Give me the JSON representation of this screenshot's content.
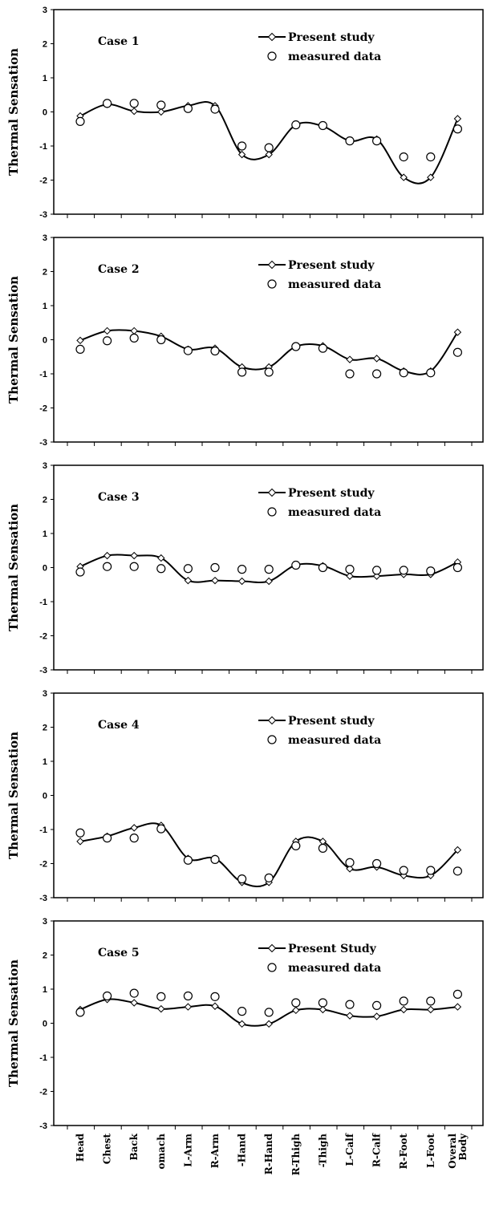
{
  "chart_data": [
    {
      "type": "line",
      "annotation": "Case 1",
      "ylabel": "Thermal Sensation",
      "ylim": [
        -3,
        3
      ],
      "yticks": [
        "3",
        "2",
        "1",
        "0",
        "-1",
        "-2",
        "-3"
      ],
      "legend": {
        "line_label": "Present study",
        "marker_label": "measured data"
      },
      "series": [
        {
          "name": "Present study",
          "values": [
            -0.12,
            0.22,
            0.02,
            0.0,
            0.18,
            0.18,
            -1.25,
            -1.25,
            -0.38,
            -0.42,
            -0.85,
            -0.8,
            -1.92,
            -1.92,
            -0.2
          ]
        },
        {
          "name": "measured data",
          "values": [
            -0.28,
            0.25,
            0.25,
            0.2,
            0.1,
            0.08,
            -1.0,
            -1.05,
            -0.38,
            -0.4,
            -0.85,
            -0.85,
            -1.32,
            -1.32,
            -0.5
          ]
        }
      ]
    },
    {
      "type": "line",
      "annotation": "Case 2",
      "ylabel": "Thermal Sensation",
      "ylim": [
        -3,
        3
      ],
      "yticks": [
        "3",
        "2",
        "1",
        "0",
        "-1",
        "-2",
        "-3"
      ],
      "legend": {
        "line_label": "Present study",
        "marker_label": "measured data"
      },
      "series": [
        {
          "name": "Present study",
          "values": [
            -0.02,
            0.26,
            0.26,
            0.1,
            -0.28,
            -0.25,
            -0.8,
            -0.8,
            -0.2,
            -0.18,
            -0.58,
            -0.55,
            -0.92,
            -0.92,
            0.22
          ]
        },
        {
          "name": "measured data",
          "values": [
            -0.28,
            -0.03,
            0.05,
            0.0,
            -0.32,
            -0.33,
            -0.95,
            -0.95,
            -0.2,
            -0.25,
            -1.0,
            -1.0,
            -0.97,
            -0.97,
            -0.37
          ]
        }
      ]
    },
    {
      "type": "line",
      "annotation": "Case 3",
      "ylabel": "Thermal Sensation",
      "ylim": [
        -3,
        3
      ],
      "yticks": [
        "3",
        "2",
        "1",
        "0",
        "-1",
        "-2",
        "-3"
      ],
      "legend": {
        "line_label": "Present study",
        "marker_label": "measured data"
      },
      "series": [
        {
          "name": "Present study",
          "values": [
            0.03,
            0.35,
            0.35,
            0.28,
            -0.38,
            -0.38,
            -0.4,
            -0.4,
            0.07,
            0.05,
            -0.25,
            -0.25,
            -0.2,
            -0.2,
            0.16
          ]
        },
        {
          "name": "measured data",
          "values": [
            -0.13,
            0.03,
            0.03,
            -0.03,
            -0.03,
            0.0,
            -0.05,
            -0.05,
            0.07,
            0.0,
            -0.05,
            -0.08,
            -0.08,
            -0.1,
            0.0
          ]
        }
      ]
    },
    {
      "type": "line",
      "annotation": "Case 4",
      "ylabel": "Thermal Sensation",
      "ylim": [
        -3,
        3
      ],
      "yticks": [
        "3",
        "2",
        "1",
        "0",
        "-1",
        "-2",
        "-3"
      ],
      "legend": {
        "line_label": "Present study",
        "marker_label": "measured data"
      },
      "series": [
        {
          "name": "Present study",
          "values": [
            -1.35,
            -1.2,
            -0.95,
            -0.88,
            -1.85,
            -1.85,
            -2.55,
            -2.55,
            -1.35,
            -1.35,
            -2.15,
            -2.1,
            -2.35,
            -2.35,
            -1.6
          ]
        },
        {
          "name": "measured data",
          "values": [
            -1.1,
            -1.25,
            -1.25,
            -0.98,
            -1.9,
            -1.88,
            -2.45,
            -2.42,
            -1.48,
            -1.55,
            -1.97,
            -2.0,
            -2.2,
            -2.2,
            -2.22
          ]
        }
      ]
    },
    {
      "type": "line",
      "annotation": "Case 5",
      "ylabel": "Thermal Sensation",
      "ylim": [
        -3,
        3
      ],
      "yticks": [
        "3",
        "2",
        "1",
        "0",
        "-1",
        "-2",
        "-3"
      ],
      "legend": {
        "line_label": "Present Study",
        "marker_label": "measured data"
      },
      "categories": [
        "Head",
        "Chest",
        "Back",
        "Stomach",
        "L-Arm",
        "R-Arm",
        "L-Hand",
        "R-Hand",
        "R-Thigh",
        "L-Thigh",
        "L-Calf",
        "R-Calf",
        "R-Foot",
        "L-Foot",
        "Overal Body"
      ],
      "category_display": [
        "Head",
        "Chest",
        "Back",
        "omach",
        "L-Arm",
        "R-Arm",
        "-Hand",
        "R-Hand",
        "R-Thigh",
        "-Thigh",
        "L-Calf",
        "R-Calf",
        "R-Foot",
        "L-Foot",
        "Overal Body"
      ],
      "series": [
        {
          "name": "Present Study",
          "values": [
            0.4,
            0.7,
            0.6,
            0.42,
            0.48,
            0.5,
            -0.02,
            -0.02,
            0.38,
            0.4,
            0.22,
            0.2,
            0.4,
            0.4,
            0.48
          ]
        },
        {
          "name": "measured data",
          "values": [
            0.32,
            0.8,
            0.88,
            0.78,
            0.8,
            0.78,
            0.35,
            0.32,
            0.6,
            0.6,
            0.55,
            0.52,
            0.65,
            0.65,
            0.85
          ]
        }
      ]
    }
  ]
}
